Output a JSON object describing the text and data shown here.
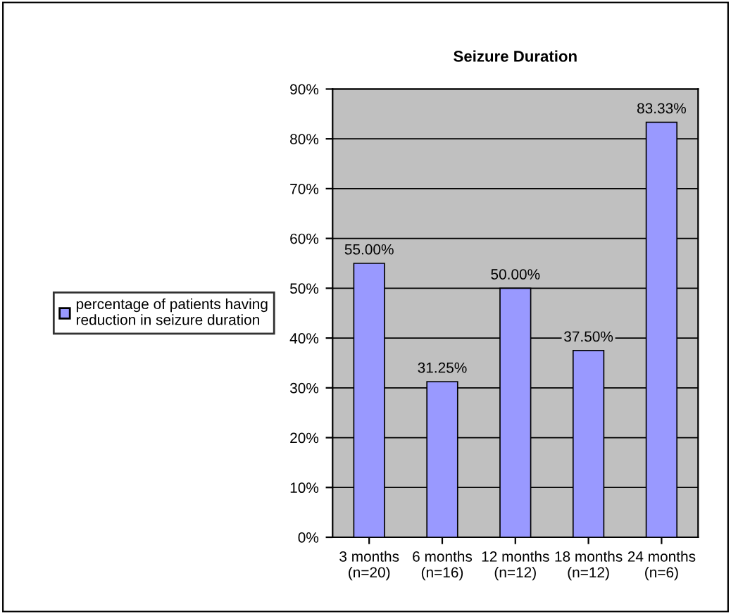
{
  "chart_data": {
    "type": "bar",
    "title": "Seizure Duration",
    "categories": [
      "3 months\n(n=20)",
      "6 months\n(n=16)",
      "12 months\n(n=12)",
      "18 months\n(n=12)",
      "24 months\n(n=6)"
    ],
    "series": [
      {
        "name": "percentage of patients having\nreduction in seizure duration",
        "color": "#9999ff",
        "values": [
          55.0,
          31.25,
          50.0,
          37.5,
          83.33
        ]
      }
    ],
    "value_labels": [
      "55.00%",
      "31.25%",
      "50.00%",
      "37.50%",
      "83.33%"
    ],
    "ylim": [
      0,
      90
    ],
    "yticks": [
      {
        "value": 0,
        "label": "0%"
      },
      {
        "value": 10,
        "label": "10%"
      },
      {
        "value": 20,
        "label": "20%"
      },
      {
        "value": 30,
        "label": "30%"
      },
      {
        "value": 40,
        "label": "40%"
      },
      {
        "value": 50,
        "label": "50%"
      },
      {
        "value": 60,
        "label": "60%"
      },
      {
        "value": 70,
        "label": "70%"
      },
      {
        "value": 80,
        "label": "80%"
      },
      {
        "value": 90,
        "label": "90%"
      }
    ],
    "grid": "y",
    "legend": "left"
  }
}
